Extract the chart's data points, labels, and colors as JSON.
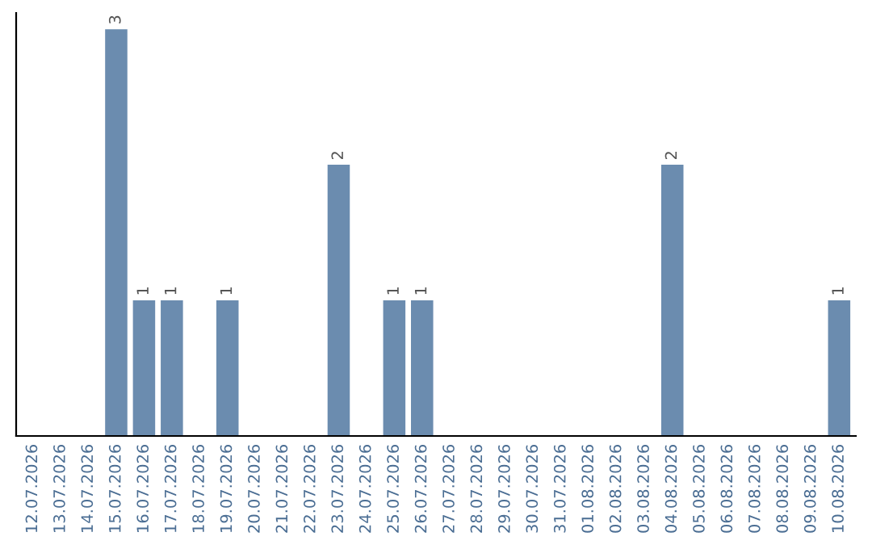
{
  "chart_data": {
    "type": "bar",
    "categories": [
      "12.07.2026",
      "13.07.2026",
      "14.07.2026",
      "15.07.2026",
      "16.07.2026",
      "17.07.2026",
      "18.07.2026",
      "19.07.2026",
      "20.07.2026",
      "21.07.2026",
      "22.07.2026",
      "23.07.2026",
      "24.07.2026",
      "25.07.2026",
      "26.07.2026",
      "27.07.2026",
      "28.07.2026",
      "29.07.2026",
      "30.07.2026",
      "31.07.2026",
      "01.08.2026",
      "02.08.2026",
      "03.08.2026",
      "04.08.2026",
      "05.08.2026",
      "06.08.2026",
      "07.08.2026",
      "08.08.2026",
      "09.08.2026",
      "10.08.2026"
    ],
    "values": [
      0,
      0,
      0,
      3,
      1,
      1,
      0,
      1,
      0,
      0,
      0,
      2,
      0,
      1,
      1,
      0,
      0,
      0,
      0,
      0,
      0,
      0,
      0,
      2,
      0,
      0,
      0,
      0,
      0,
      1
    ],
    "value_labels": [
      null,
      null,
      null,
      "3",
      "1",
      "1",
      null,
      "1",
      null,
      null,
      null,
      "2",
      null,
      "1",
      "1",
      null,
      null,
      null,
      null,
      null,
      null,
      null,
      null,
      "2",
      null,
      null,
      null,
      null,
      null,
      "1"
    ],
    "color": "#6b8caf",
    "tick_labels": "x",
    "grid": false,
    "legend": false
  }
}
